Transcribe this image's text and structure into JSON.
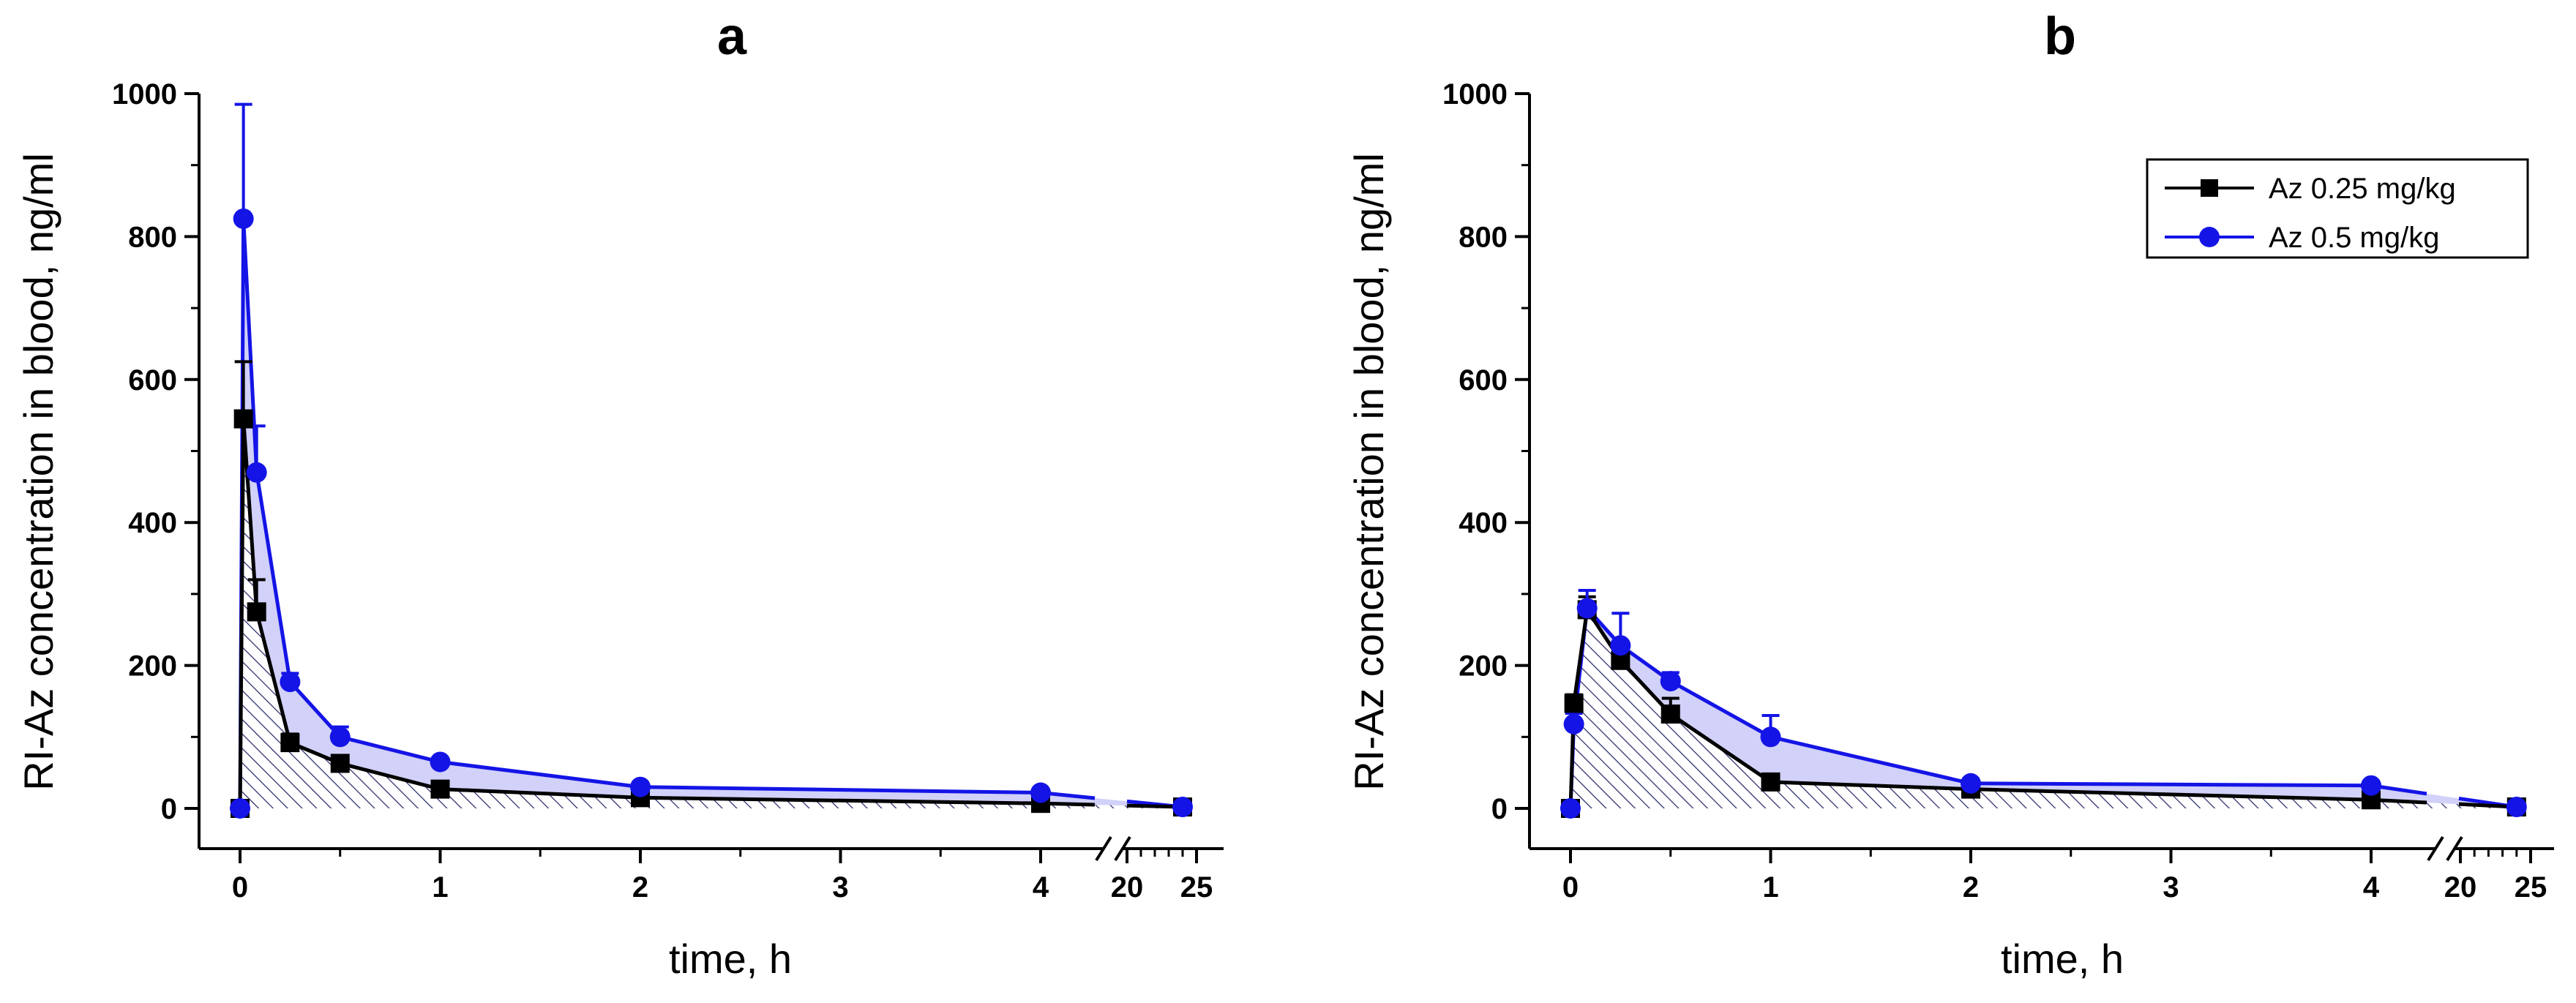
{
  "chart_data": [
    {
      "type": "line",
      "title": "a",
      "xlabel": "time, h",
      "ylabel": "RI-Az concentration in blood, ng/ml",
      "ylim": [
        -50,
        1000
      ],
      "yticks": [
        "0",
        "200",
        "400",
        "600",
        "800",
        "1000"
      ],
      "xticks": [
        "0",
        "1",
        "2",
        "3",
        "4",
        "20",
        "25"
      ],
      "x_axis_break": "broken between 4 and 20",
      "x": [
        0,
        0.017,
        0.083,
        0.25,
        0.5,
        1,
        2,
        4,
        24
      ],
      "series": [
        {
          "name": "Az 0.25 mg/kg",
          "color": "#000000",
          "marker": "square",
          "values": [
            0,
            545,
            275,
            92,
            63,
            27,
            15,
            7,
            2
          ],
          "error": [
            0,
            80,
            45,
            12,
            8,
            5,
            3,
            2,
            1
          ]
        },
        {
          "name": "Az 0.5 mg/kg",
          "color": "#1414e6",
          "marker": "circle",
          "values": [
            0,
            825,
            470,
            177,
            100,
            65,
            30,
            22,
            2
          ],
          "error": [
            0,
            160,
            65,
            12,
            14,
            6,
            4,
            4,
            1
          ]
        }
      ]
    },
    {
      "type": "line",
      "title": "b",
      "xlabel": "time, h",
      "ylabel": "RI-Az concentration in blood, ng/ml",
      "ylim": [
        -50,
        1000
      ],
      "yticks": [
        "0",
        "200",
        "400",
        "600",
        "800",
        "1000"
      ],
      "xticks": [
        "0",
        "1",
        "2",
        "3",
        "4",
        "20",
        "25"
      ],
      "x_axis_break": "broken between 4 and 20",
      "x": [
        0,
        0.017,
        0.083,
        0.25,
        0.5,
        1,
        2,
        4,
        24
      ],
      "series": [
        {
          "name": "Az 0.25 mg/kg",
          "color": "#000000",
          "marker": "square",
          "values": [
            0,
            147,
            278,
            207,
            132,
            37,
            27,
            12,
            2
          ],
          "error": [
            0,
            12,
            18,
            10,
            22,
            5,
            3,
            2,
            1
          ]
        },
        {
          "name": "Az 0.5 mg/kg",
          "color": "#1414e6",
          "marker": "circle",
          "values": [
            0,
            118,
            280,
            228,
            178,
            100,
            35,
            32,
            2
          ],
          "error": [
            0,
            15,
            25,
            45,
            12,
            30,
            6,
            6,
            1
          ]
        }
      ],
      "legend": {
        "placement": "top-right",
        "entries": [
          "Az 0.25 mg/kg",
          "Az 0.5 mg/kg"
        ]
      }
    }
  ]
}
